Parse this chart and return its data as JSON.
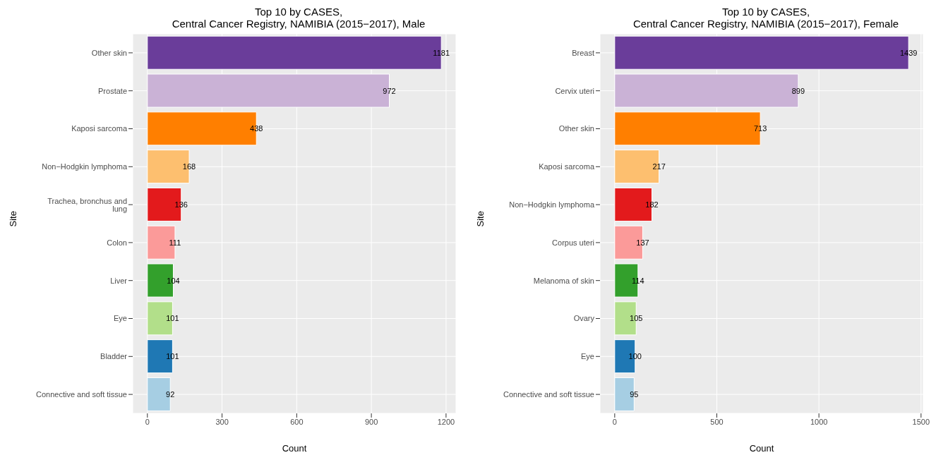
{
  "chart_data": [
    {
      "type": "bar",
      "orientation": "horizontal",
      "title": "Top 10 by CASES,\nCentral Cancer Registry, NAMIBIA  (2015−2017), Male",
      "xlabel": "Count",
      "ylabel": "Site",
      "categories": [
        "Other skin",
        "Prostate",
        "Kaposi sarcoma",
        "Non−Hodgkin lymphoma",
        "Trachea, bronchus and lung",
        "Colon",
        "Liver",
        "Eye",
        "Bladder",
        "Connective and soft tissue"
      ],
      "values": [
        1181,
        972,
        438,
        168,
        136,
        111,
        104,
        101,
        101,
        92
      ],
      "colors": [
        "#6a3d9a",
        "#cab2d6",
        "#ff7f00",
        "#fdbf6f",
        "#e31a1c",
        "#fb9a99",
        "#33a02c",
        "#b2df8a",
        "#1f78b4",
        "#a6cee3"
      ],
      "xlim": [
        -59,
        1240
      ],
      "xticks": [
        0,
        300,
        600,
        900,
        1200
      ],
      "grid": true,
      "data_labels": true
    },
    {
      "type": "bar",
      "orientation": "horizontal",
      "title": "Top 10 by CASES,\nCentral Cancer Registry, NAMIBIA  (2015−2017), Female",
      "xlabel": "Count",
      "ylabel": "Site",
      "categories": [
        "Breast",
        "Cervix uteri",
        "Other skin",
        "Kaposi sarcoma",
        "Non−Hodgkin lymphoma",
        "Corpus uteri",
        "Melanoma of skin",
        "Ovary",
        "Eye",
        "Connective and soft tissue"
      ],
      "values": [
        1439,
        899,
        713,
        217,
        182,
        137,
        114,
        105,
        100,
        95
      ],
      "colors": [
        "#6a3d9a",
        "#cab2d6",
        "#ff7f00",
        "#fdbf6f",
        "#e31a1c",
        "#fb9a99",
        "#33a02c",
        "#b2df8a",
        "#1f78b4",
        "#a6cee3"
      ],
      "xlim": [
        -72,
        1511
      ],
      "xticks": [
        0,
        500,
        1000,
        1500
      ],
      "grid": true,
      "data_labels": true
    }
  ]
}
